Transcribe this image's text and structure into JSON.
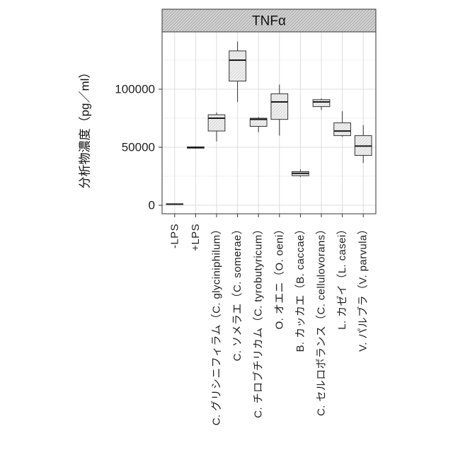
{
  "chart_data": {
    "type": "box",
    "facet_label": "TNFα",
    "ylabel": "分析物濃度（pg／ml）",
    "categories": [
      "-LPS",
      "+LPS",
      "C. グリシニフィラム（C. glyciniphilum）",
      "C. ソメラエ（C. somerae）",
      "C. チロブチリカム（C. tyrobutyricum）",
      "O. オエニ（O. oeni）",
      "B. カッカエ（B. caccae）",
      "C. セルロボランス（C. cellulovorans）",
      "L. カゼイ（L. casei）",
      "V. パルブラ（V. parvula）"
    ],
    "yticks": [
      0,
      50000,
      100000
    ],
    "ytick_labels": [
      "0",
      "50000",
      "100000"
    ],
    "ylim": [
      -7300,
      149400
    ],
    "grid": true,
    "boxes": [
      {
        "min": 500,
        "q1": 800,
        "median": 1000,
        "q3": 1200,
        "max": 1500
      },
      {
        "min": 48800,
        "q1": 49200,
        "median": 49700,
        "q3": 50300,
        "max": 50800
      },
      {
        "min": 55000,
        "q1": 64000,
        "median": 75000,
        "q3": 78000,
        "max": 80000
      },
      {
        "min": 89000,
        "q1": 107000,
        "median": 125000,
        "q3": 133000,
        "max": 141000
      },
      {
        "min": 63000,
        "q1": 68000,
        "median": 74000,
        "q3": 75000,
        "max": 76000
      },
      {
        "min": 60000,
        "q1": 74000,
        "median": 89000,
        "q3": 96000,
        "max": 104000
      },
      {
        "min": 24500,
        "q1": 25500,
        "median": 27500,
        "q3": 29000,
        "max": 31000
      },
      {
        "min": 82000,
        "q1": 85000,
        "median": 89000,
        "q3": 91000,
        "max": 92000
      },
      {
        "min": 59000,
        "q1": 60000,
        "median": 64000,
        "q3": 71000,
        "max": 81000
      },
      {
        "min": 36500,
        "q1": 43000,
        "median": 51000,
        "q3": 60000,
        "max": 69000
      }
    ],
    "colors": {
      "strip_fill": "#d4d4d4",
      "strip_hatch": "#a9a9a9",
      "box_fill": "#f0f0f0",
      "box_hatch": "#d6d6d6",
      "outline": "#333333",
      "median": "#1a1a1a",
      "grid_major": "#dcdcdc",
      "grid_minor": "#ededed",
      "panel_bg": "#ffffff"
    }
  }
}
